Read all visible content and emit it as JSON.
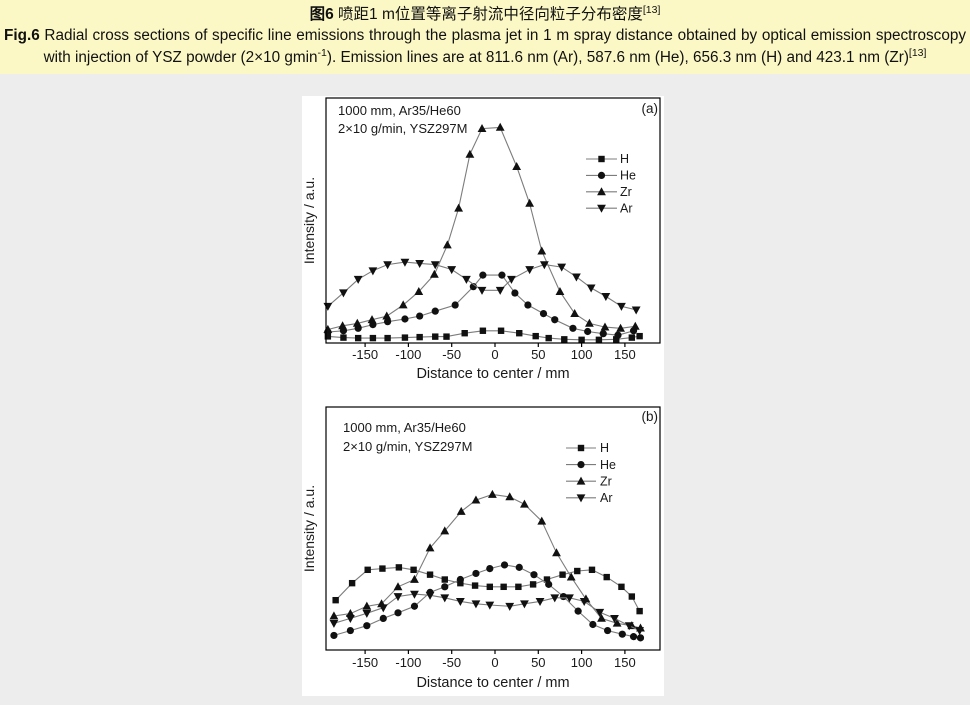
{
  "page": {
    "background": "#EDEDED",
    "caption_background": "#FBF8C5",
    "figure_panel_background": "#FFFFFF"
  },
  "caption": {
    "zh_bold": "图6",
    "zh_text": " 喷距1 m位置等离子射流中径向粒子分布密度",
    "zh_sup": "[13]",
    "en_bold": "Fig.6",
    "en_text_1": " Radial cross sections of specific line emissions through the plasma jet in 1 m spray distance obtained by optical emission spectroscopy with injection of YSZ powder (2×10 gmin",
    "en_sup_1": "-1",
    "en_text_2": "). Emission lines are at 811.6 nm (Ar), 587.6 nm (He), 656.3 nm (H) and 423.1 nm (Zr)",
    "en_sup_2": "[13]"
  },
  "figure_colors": {
    "line": "#7C7C7C",
    "marker": "#111111",
    "axis": "#000000",
    "text": "#1a1a1a"
  },
  "chart_data": [
    {
      "type": "line",
      "panel_label": "(a)",
      "annotation": [
        "1000 mm, Ar35/He60",
        "2×10 g/min, YSZ297M"
      ],
      "xlabel": "Distance to center / mm",
      "ylabel": "Intensity / a.u.",
      "x_ticks": [
        -150,
        -100,
        -50,
        0,
        50,
        100,
        150
      ],
      "xlim": [
        -196,
        191
      ],
      "ylim": [
        0,
        1
      ],
      "grid": false,
      "legend_position": "upper-right-inside",
      "legend_order": [
        "H",
        "He",
        "Zr",
        "Ar"
      ],
      "series": [
        {
          "name": "H",
          "marker": "square",
          "x": [
            -193,
            -175,
            -158,
            -141,
            -124,
            -104,
            -87,
            -69,
            -56,
            -35,
            -14,
            7,
            28,
            47,
            62,
            80,
            100,
            120,
            140,
            158,
            167
          ],
          "y": [
            0.027,
            0.022,
            0.02,
            0.02,
            0.02,
            0.022,
            0.024,
            0.026,
            0.026,
            0.04,
            0.05,
            0.05,
            0.04,
            0.028,
            0.02,
            0.015,
            0.013,
            0.013,
            0.015,
            0.022,
            0.028
          ]
        },
        {
          "name": "He",
          "marker": "circle",
          "x": [
            -193,
            -175,
            -158,
            -141,
            -124,
            -104,
            -87,
            -69,
            -46,
            -25,
            -14,
            8,
            23,
            38,
            56,
            69,
            90,
            107,
            125,
            142,
            160
          ],
          "y": [
            0.045,
            0.05,
            0.06,
            0.075,
            0.087,
            0.098,
            0.11,
            0.13,
            0.155,
            0.23,
            0.277,
            0.277,
            0.204,
            0.155,
            0.12,
            0.095,
            0.06,
            0.047,
            0.038,
            0.032,
            0.05
          ]
        },
        {
          "name": "Zr",
          "marker": "triangle-up",
          "x": [
            -193,
            -176,
            -159,
            -142,
            -125,
            -106,
            -88,
            -70,
            -55,
            -42,
            -29,
            -15,
            6,
            25,
            40,
            54,
            75,
            92,
            109,
            127,
            145,
            162
          ],
          "y": [
            0.055,
            0.07,
            0.08,
            0.095,
            0.11,
            0.155,
            0.21,
            0.28,
            0.4,
            0.55,
            0.77,
            0.875,
            0.88,
            0.72,
            0.57,
            0.375,
            0.21,
            0.12,
            0.08,
            0.065,
            0.06,
            0.068
          ]
        },
        {
          "name": "Ar",
          "marker": "triangle-down",
          "x": [
            -193,
            -175,
            -158,
            -141,
            -124,
            -104,
            -87,
            -69,
            -50,
            -33,
            -15,
            6,
            19,
            40,
            57,
            77,
            94,
            111,
            128,
            146,
            163
          ],
          "y": [
            0.15,
            0.205,
            0.26,
            0.295,
            0.32,
            0.33,
            0.325,
            0.32,
            0.3,
            0.26,
            0.215,
            0.215,
            0.26,
            0.3,
            0.32,
            0.31,
            0.27,
            0.225,
            0.19,
            0.15,
            0.135
          ]
        }
      ]
    },
    {
      "type": "line",
      "panel_label": "(b)",
      "annotation": [
        "1000 mm, Ar35/He60",
        "2×10 g/min, YSZ297M"
      ],
      "xlabel": "Distance to center / mm",
      "ylabel": "Intensity / a.u.",
      "x_ticks": [
        -150,
        -100,
        -50,
        0,
        50,
        100,
        150
      ],
      "xlim": [
        -196,
        191
      ],
      "ylim": [
        0,
        1
      ],
      "grid": false,
      "legend_position": "upper-right-inside",
      "legend_order": [
        "H",
        "He",
        "Zr",
        "Ar"
      ],
      "series": [
        {
          "name": "H",
          "marker": "square",
          "x": [
            -184,
            -165,
            -147,
            -130,
            -111,
            -94,
            -75,
            -58,
            -40,
            -23,
            -6,
            10,
            27,
            44,
            60,
            78,
            95,
            112,
            129,
            146,
            158,
            167
          ],
          "y": [
            0.205,
            0.275,
            0.33,
            0.335,
            0.34,
            0.33,
            0.31,
            0.29,
            0.275,
            0.265,
            0.26,
            0.26,
            0.26,
            0.27,
            0.29,
            0.31,
            0.325,
            0.33,
            0.3,
            0.26,
            0.22,
            0.16
          ]
        },
        {
          "name": "He",
          "marker": "circle",
          "x": [
            -186,
            -167,
            -148,
            -129,
            -112,
            -93,
            -75,
            -58,
            -40,
            -22,
            -6,
            11,
            28,
            45,
            62,
            79,
            96,
            113,
            130,
            147,
            160,
            168
          ],
          "y": [
            0.06,
            0.08,
            0.1,
            0.13,
            0.153,
            0.18,
            0.237,
            0.26,
            0.29,
            0.315,
            0.335,
            0.35,
            0.34,
            0.31,
            0.27,
            0.22,
            0.16,
            0.105,
            0.08,
            0.065,
            0.055,
            0.05
          ]
        },
        {
          "name": "Zr",
          "marker": "triangle-up",
          "x": [
            -186,
            -167,
            -148,
            -131,
            -112,
            -93,
            -75,
            -58,
            -39,
            -22,
            -3,
            17,
            34,
            54,
            71,
            88,
            105,
            123,
            141,
            158,
            168
          ],
          "y": [
            0.14,
            0.15,
            0.18,
            0.19,
            0.26,
            0.29,
            0.42,
            0.49,
            0.57,
            0.617,
            0.64,
            0.63,
            0.6,
            0.53,
            0.4,
            0.3,
            0.21,
            0.13,
            0.11,
            0.1,
            0.09
          ]
        },
        {
          "name": "Ar",
          "marker": "triangle-down",
          "x": [
            -186,
            -167,
            -148,
            -129,
            -112,
            -93,
            -75,
            -58,
            -40,
            -22,
            -6,
            17,
            34,
            52,
            69,
            86,
            103,
            121,
            138,
            155,
            167
          ],
          "y": [
            0.11,
            0.13,
            0.151,
            0.174,
            0.22,
            0.23,
            0.225,
            0.215,
            0.2,
            0.19,
            0.185,
            0.18,
            0.19,
            0.2,
            0.215,
            0.215,
            0.2,
            0.155,
            0.13,
            0.1,
            0.08
          ]
        }
      ]
    }
  ]
}
